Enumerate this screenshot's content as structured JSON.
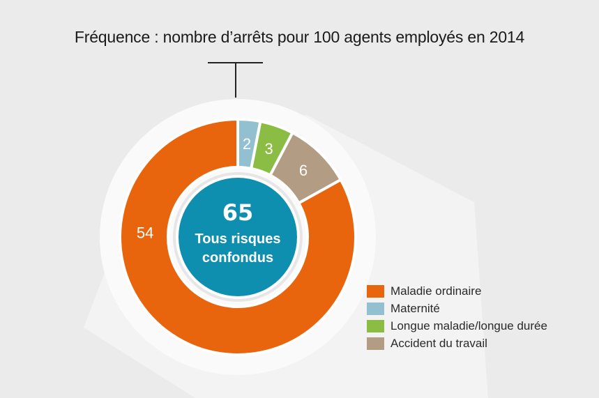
{
  "chart_data": {
    "type": "pie",
    "donut": true,
    "title": "Fréquence : nombre d’arrêts pour 100 agents employés en 2014",
    "total": {
      "value": "65",
      "label_line1": "Tous risques",
      "label_line2": "confondus"
    },
    "slices": [
      {
        "name": "Maternité",
        "value": 2,
        "color": "#92c0d0"
      },
      {
        "name": "Longue maladie/longue durée",
        "value": 3,
        "color": "#8bbd45"
      },
      {
        "name": "Accident du travail",
        "value": 6,
        "color": "#b29c84"
      },
      {
        "name": "Maladie ordinaire",
        "value": 54,
        "color": "#e8650d"
      }
    ],
    "legend": [
      "Maladie ordinaire",
      "Maternité",
      "Longue maladie/longue durée",
      "Accident du travail"
    ],
    "legend_colors": [
      "#e8650d",
      "#92c0d0",
      "#8bbd45",
      "#b29c84"
    ],
    "legend_position": "bottom-right",
    "center_color": "#0f8fb0"
  }
}
